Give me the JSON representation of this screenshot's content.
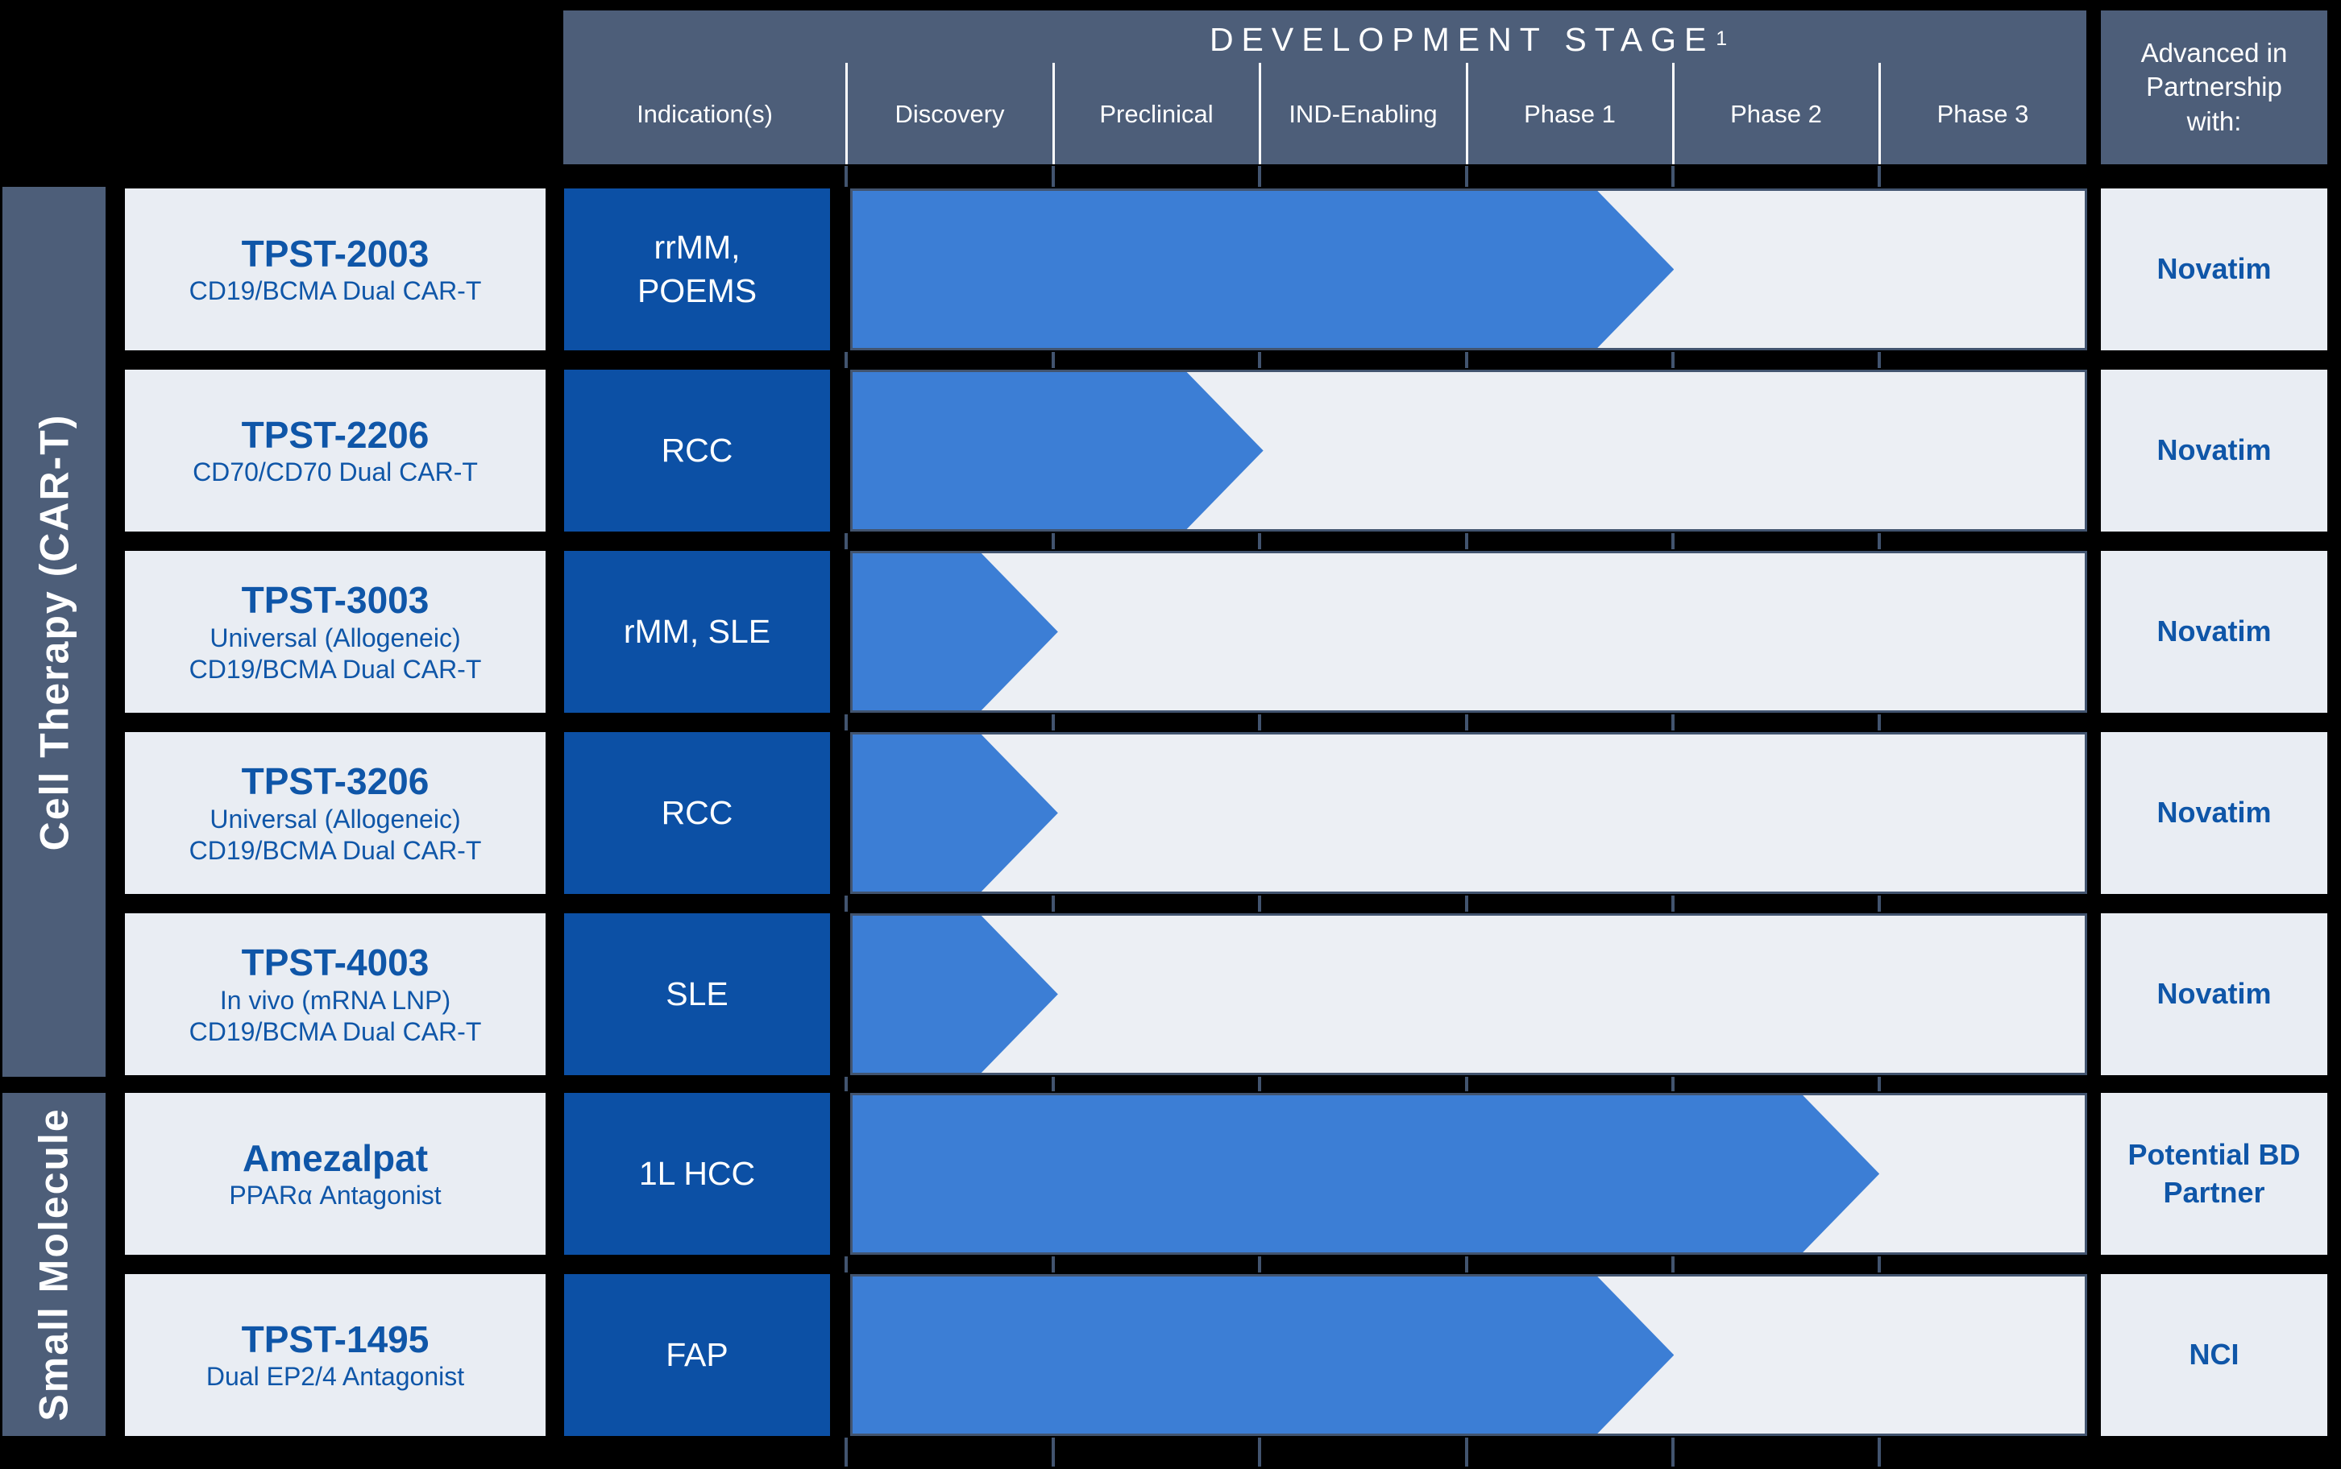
{
  "header": {
    "title": "DEVELOPMENT STAGE",
    "title_sup": "1",
    "columns": [
      "Indication(s)",
      "Discovery",
      "Preclinical",
      "IND-Enabling",
      "Phase 1",
      "Phase 2",
      "Phase 3"
    ],
    "partner_header": "Advanced in Partnership with:"
  },
  "sections": [
    {
      "label": "Cell Therapy (CAR-T)"
    },
    {
      "label": "Small Molecule"
    }
  ],
  "rows": [
    {
      "name": "TPST-2003",
      "sub1": "CD19/BCMA Dual CAR-T",
      "sub2": "",
      "indication": "rrMM, POEMS",
      "stages_completed": 4,
      "stage_reached": "Phase 1",
      "partner": "Novatim"
    },
    {
      "name": "TPST-2206",
      "sub1": "CD70/CD70 Dual CAR-T",
      "sub2": "",
      "indication": "RCC",
      "stages_completed": 2,
      "stage_reached": "Preclinical",
      "partner": "Novatim"
    },
    {
      "name": "TPST-3003",
      "sub1": "Universal (Allogeneic)",
      "sub2": "CD19/BCMA Dual CAR-T",
      "indication": "rMM, SLE",
      "stages_completed": 1,
      "stage_reached": "Discovery",
      "partner": "Novatim"
    },
    {
      "name": "TPST-3206",
      "sub1": "Universal (Allogeneic)",
      "sub2": "CD19/BCMA Dual CAR-T",
      "indication": "RCC",
      "stages_completed": 1,
      "stage_reached": "Discovery",
      "partner": "Novatim"
    },
    {
      "name": "TPST-4003",
      "sub1": "In vivo (mRNA LNP)",
      "sub2": "CD19/BCMA Dual CAR-T",
      "indication": "SLE",
      "stages_completed": 1,
      "stage_reached": "Discovery",
      "partner": "Novatim"
    },
    {
      "name": "Amezalpat",
      "sub1": "PPARα Antagonist",
      "sub2": "",
      "indication": "1L HCC",
      "stages_completed": 5,
      "stage_reached": "Phase 2",
      "partner": "Potential BD Partner"
    },
    {
      "name": "TPST-1495",
      "sub1": "Dual EP2/4 Antagonist",
      "sub2": "",
      "indication": "FAP",
      "stages_completed": 4,
      "stage_reached": "Phase 1",
      "partner": "NCI"
    }
  ],
  "colors": {
    "slate_header": "#4d5e79",
    "indication_dark_blue": "#0c50a5",
    "arrow_blue": "#3c7ed5",
    "track_background": "#eceff4",
    "card_background": "#e9edf3",
    "program_text_blue": "#0f56a8",
    "gridline_slate": "#42546f",
    "page_background": "#000000"
  },
  "chart_data": {
    "type": "bar",
    "orientation": "horizontal",
    "title": "DEVELOPMENT STAGE",
    "categories": [
      "TPST-2003",
      "TPST-2206",
      "TPST-3003",
      "TPST-3206",
      "TPST-4003",
      "Amezalpat",
      "TPST-1495"
    ],
    "stage_axis": [
      "Discovery",
      "Preclinical",
      "IND-Enabling",
      "Phase 1",
      "Phase 2",
      "Phase 3"
    ],
    "series": [
      {
        "name": "Stages completed (arrow extent)",
        "values": [
          4,
          2,
          1,
          1,
          1,
          5,
          4
        ]
      }
    ],
    "value_meaning": "number of development-stage columns spanned by each program arrow (tip at end of named stage)",
    "xlim": [
      0,
      6
    ],
    "grid": true,
    "legend_position": "none"
  }
}
